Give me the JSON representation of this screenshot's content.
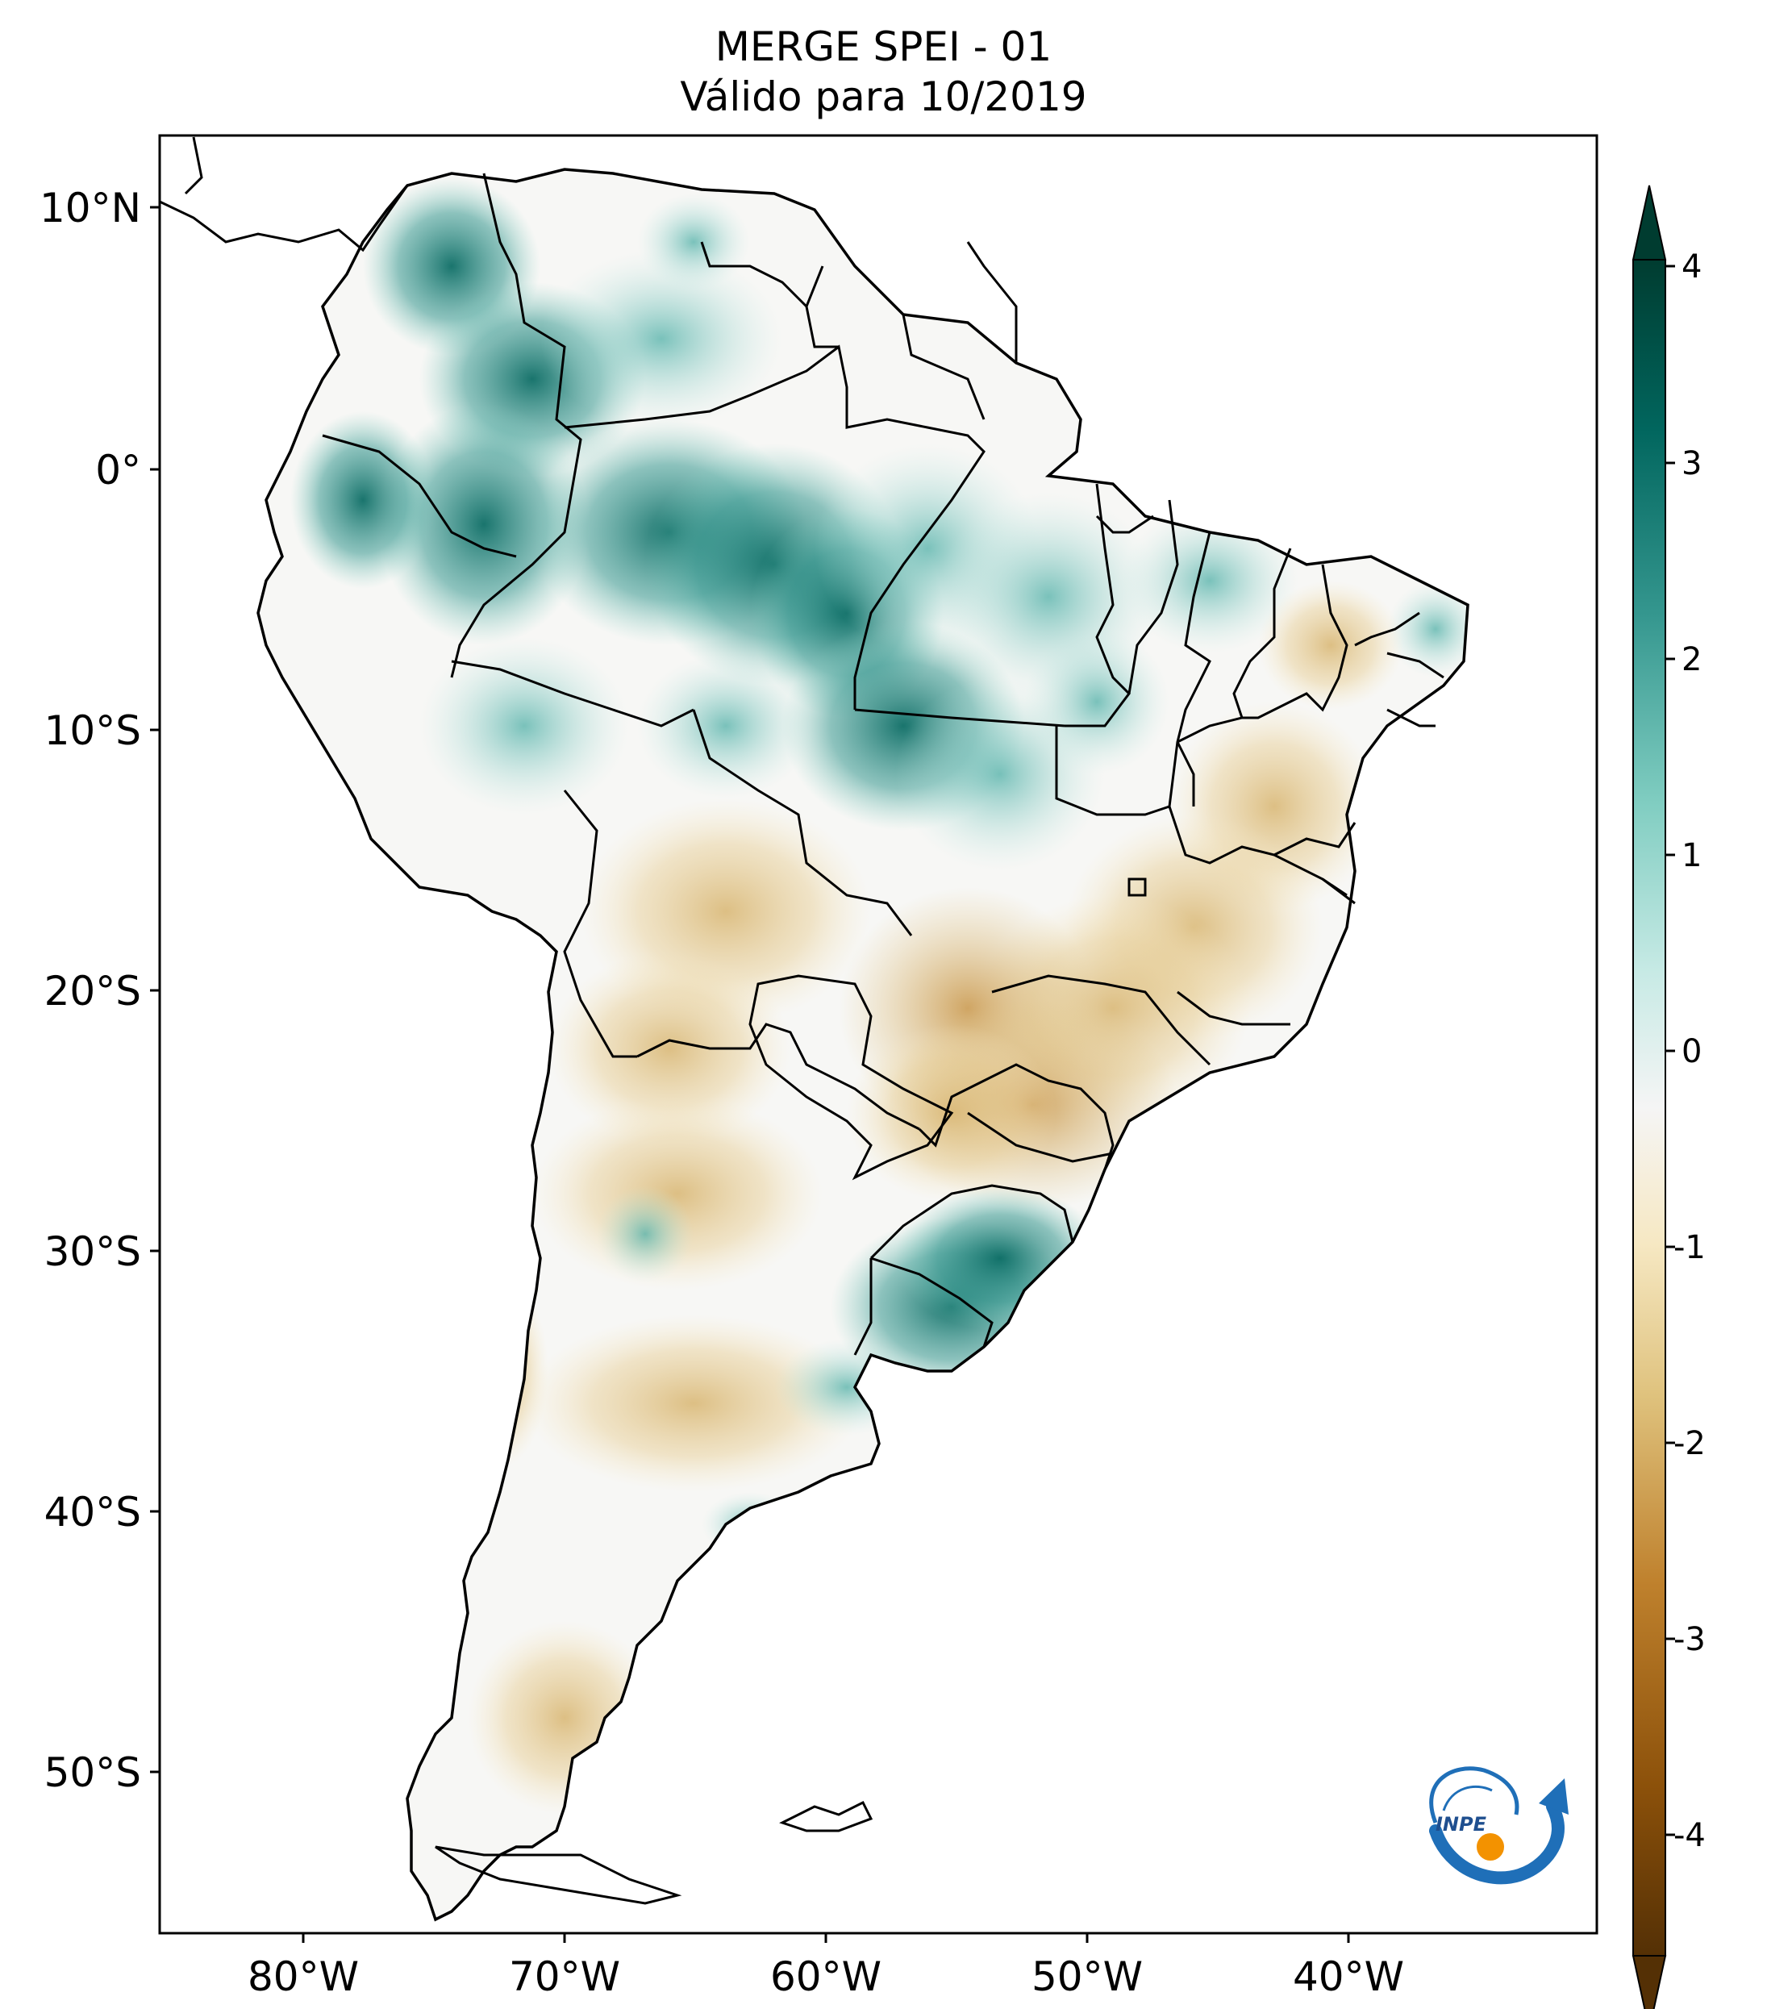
{
  "title": {
    "line1": "MERGE   SPEI - 01",
    "line2": "Válido para 10/2019"
  },
  "map": {
    "lat_ticks": [
      "10°N",
      "0°",
      "10°S",
      "20°S",
      "30°S",
      "40°S",
      "50°S"
    ],
    "lon_ticks": [
      "80°W",
      "70°W",
      "60°W",
      "50°W",
      "40°W"
    ],
    "extent": {
      "lon_min": -85,
      "lon_max": -30,
      "lat_min": -56,
      "lat_max": 13
    }
  },
  "colorbar": {
    "ticks": [
      "4",
      "3",
      "2",
      "1",
      "0",
      "-1",
      "-2",
      "-3",
      "-4"
    ],
    "colors": [
      "#543005",
      "#8c510a",
      "#bf812d",
      "#dfc27d",
      "#f6e8c3",
      "#f5f5f5",
      "#c7eae5",
      "#80cdc1",
      "#35978f",
      "#01665e",
      "#003c30"
    ],
    "extend": "both"
  },
  "logo": {
    "text": "INPE",
    "colors": {
      "blue": "#1f6fb8",
      "orange": "#f39200"
    }
  }
}
